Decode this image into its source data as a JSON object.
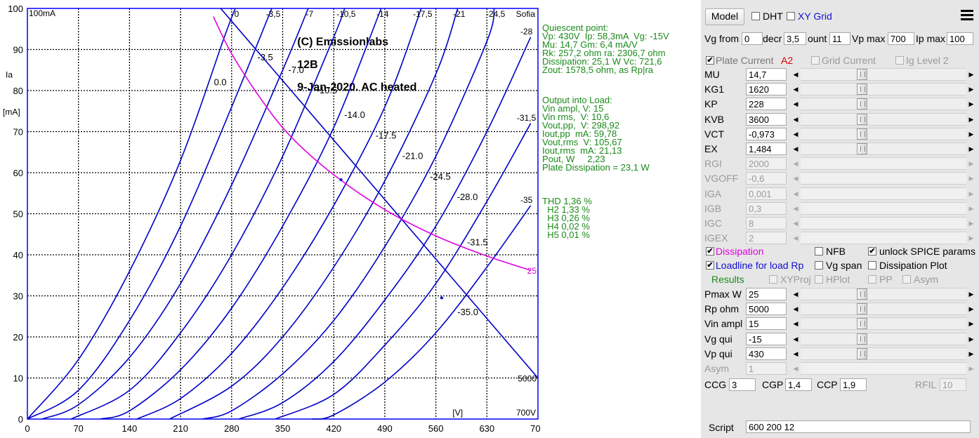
{
  "chart_data": {
    "type": "line",
    "title": "(C) Emissionlabs",
    "subtitle_lines": [
      "12B",
      "9-Jan-2020.  AC heated"
    ],
    "corner_label": "Sofia",
    "xlabel": "[V]",
    "ylabel_lines": [
      "Ia",
      "[mA]"
    ],
    "y_top_label": "100mA",
    "vpmax_label": "700V",
    "xlim": [
      0,
      700
    ],
    "ylim": [
      0,
      100
    ],
    "xticks": [
      0,
      70,
      140,
      210,
      280,
      350,
      420,
      490,
      560,
      630,
      700
    ],
    "yticks": [
      0,
      10,
      20,
      30,
      40,
      50,
      60,
      70,
      80,
      90,
      100
    ],
    "curves": [
      {
        "vg": 0,
        "top_label": "0",
        "mid_label": "0.0",
        "points": [
          [
            0,
            0
          ],
          [
            70,
            14.5
          ],
          [
            140,
            36
          ],
          [
            210,
            63
          ],
          [
            270,
            93
          ],
          [
            285,
            100
          ]
        ]
      },
      {
        "vg": -3.5,
        "top_label": "-3,5",
        "mid_label": "-3.5",
        "points": [
          [
            0,
            0
          ],
          [
            70,
            7
          ],
          [
            140,
            24
          ],
          [
            210,
            47
          ],
          [
            280,
            76
          ],
          [
            335,
            100
          ]
        ]
      },
      {
        "vg": -7,
        "top_label": "-7",
        "mid_label": "-7.0",
        "points": [
          [
            20,
            0
          ],
          [
            70,
            3.5
          ],
          [
            140,
            15
          ],
          [
            210,
            33
          ],
          [
            280,
            57
          ],
          [
            350,
            85
          ],
          [
            385,
            100
          ]
        ]
      },
      {
        "vg": -10.5,
        "top_label": "-10,5",
        "mid_label": "-10.5",
        "points": [
          [
            60,
            0
          ],
          [
            140,
            7
          ],
          [
            210,
            21
          ],
          [
            280,
            40
          ],
          [
            350,
            64
          ],
          [
            420,
            93
          ],
          [
            435,
            100
          ]
        ]
      },
      {
        "vg": -14,
        "top_label": "-14",
        "mid_label": "-14.0",
        "points": [
          [
            100,
            0
          ],
          [
            140,
            2
          ],
          [
            210,
            12
          ],
          [
            280,
            27
          ],
          [
            350,
            47
          ],
          [
            420,
            71
          ],
          [
            485,
            100
          ]
        ]
      },
      {
        "vg": -17.5,
        "top_label": "-17,5",
        "mid_label": "-17.5",
        "points": [
          [
            150,
            0
          ],
          [
            210,
            5
          ],
          [
            280,
            16
          ],
          [
            350,
            32
          ],
          [
            420,
            52
          ],
          [
            490,
            76
          ],
          [
            540,
            100
          ]
        ]
      },
      {
        "vg": -21,
        "top_label": "-21",
        "mid_label": "-21.0",
        "points": [
          [
            195,
            0
          ],
          [
            280,
            8
          ],
          [
            350,
            20
          ],
          [
            420,
            37
          ],
          [
            490,
            58
          ],
          [
            560,
            84
          ],
          [
            590,
            100
          ]
        ]
      },
      {
        "vg": -24.5,
        "top_label": "-24,5",
        "mid_label": "-24.5",
        "points": [
          [
            240,
            0
          ],
          [
            280,
            2
          ],
          [
            350,
            11
          ],
          [
            420,
            24
          ],
          [
            490,
            42
          ],
          [
            560,
            64
          ],
          [
            630,
            92
          ],
          [
            640,
            100
          ]
        ]
      },
      {
        "vg": -28,
        "top_label": "-28",
        "mid_label": "-28.0",
        "points": [
          [
            290,
            0
          ],
          [
            350,
            4
          ],
          [
            420,
            14
          ],
          [
            490,
            29
          ],
          [
            560,
            47
          ],
          [
            630,
            70
          ],
          [
            690,
            93
          ]
        ]
      },
      {
        "vg": -31.5,
        "top_label": "-31,5",
        "mid_label": "-31.5",
        "points": [
          [
            340,
            0
          ],
          [
            420,
            6
          ],
          [
            490,
            18
          ],
          [
            560,
            33
          ],
          [
            630,
            53
          ],
          [
            690,
            72
          ]
        ]
      },
      {
        "vg": -35,
        "top_label": "-35",
        "mid_label": "-35.0",
        "points": [
          [
            390,
            0
          ],
          [
            420,
            1
          ],
          [
            490,
            9
          ],
          [
            560,
            21
          ],
          [
            630,
            37
          ],
          [
            690,
            52
          ]
        ]
      }
    ],
    "loadline": {
      "name": "5000",
      "points": [
        [
          265,
          100
        ],
        [
          700,
          10
        ]
      ]
    },
    "dissipation": {
      "name": "25",
      "points": [
        [
          255,
          98
        ],
        [
          280,
          89
        ],
        [
          320,
          78
        ],
        [
          360,
          69
        ],
        [
          420,
          59.5
        ],
        [
          490,
          51
        ],
        [
          560,
          44.6
        ],
        [
          630,
          39.7
        ],
        [
          690,
          36.2
        ]
      ]
    },
    "quiescent_point": [
      430,
      58.3
    ],
    "swing_point": [
      568,
      29.5
    ],
    "grid": true,
    "colors": {
      "curves": "#0000c8",
      "loadline": "#0000c8",
      "dissipation": "#e000e0",
      "axes": "#0000ff",
      "grid": "#000000",
      "labels": "#000000"
    }
  },
  "info": {
    "quiescent": [
      "Quiescent point:",
      "Vp: 430V  Ip: 58,3mA  Vg: -15V",
      "Mu: 14,7 Gm: 6,4 mA/V",
      "Rk: 257,2 ohm ra: 2306,7 ohm",
      "Dissipation: 25,1 W Vc: 721,6",
      "Zout: 1578,5 ohm, as Rp|ra"
    ],
    "output": [
      "Output into Load:",
      "Vin ampl, V: 15",
      "Vin rms,  V: 10,6",
      "Vout,pp,  V: 298,92",
      "Iout,pp  mA: 59,78",
      "Vout,rms  V: 105,67",
      "Iout,rms  mA: 21,13",
      "Pout, W     2,23",
      "Plate Dissipation = 23,1 W"
    ],
    "thd": [
      "THD 1,36 %",
      "  H2 1,33 %",
      "  H3 0,26 %",
      "  H4 0,02 %",
      "  H5 0,01 %"
    ],
    "color": "#1a8a1a"
  },
  "panel": {
    "model_button": "Model",
    "dht_label": "DHT",
    "xy_grid_label": "XY Grid",
    "vg_from_label": "Vg from",
    "vg_from_value": "0",
    "decr_label": "decr",
    "decr_value": "3,5",
    "count_label": "ount",
    "count_value": "11",
    "vp_max_label": "Vp max",
    "vp_max_value": "700",
    "ip_max_label": "Ip max",
    "ip_max_value": "100",
    "plate_current_label": "Plate Current",
    "a2_label": "A2",
    "grid_current_label": "Grid Current",
    "ig_level_label": "Ig Level 2",
    "params": [
      {
        "name": "MU",
        "value": "14,7",
        "enabled": true,
        "pos": 0.36
      },
      {
        "name": "KG1",
        "value": "1620",
        "enabled": true,
        "pos": 0.36
      },
      {
        "name": "KP",
        "value": "228",
        "enabled": true,
        "pos": 0.36
      },
      {
        "name": "KVB",
        "value": "3600",
        "enabled": true,
        "pos": 0.36
      },
      {
        "name": "VCT",
        "value": "-0,973",
        "enabled": true,
        "pos": 0.36
      },
      {
        "name": "EX",
        "value": "1,484",
        "enabled": true,
        "pos": 0.36
      },
      {
        "name": "RGI",
        "value": "2000",
        "enabled": false
      },
      {
        "name": "VGOFF",
        "value": "-0,6",
        "enabled": false
      },
      {
        "name": "IGA",
        "value": "0,001",
        "enabled": false
      },
      {
        "name": "IGB",
        "value": "0,3",
        "enabled": false
      },
      {
        "name": "IGC",
        "value": "8",
        "enabled": false
      },
      {
        "name": "IGEX",
        "value": "2",
        "enabled": false
      }
    ],
    "dissipation_label": "Dissipation",
    "nfb_label": "NFB",
    "unlock_label": "unlock SPICE params",
    "loadline_label": "Loadline for load Rp",
    "vg_span_label": "Vg span",
    "dissipation_plot_label": "Dissipation Plot",
    "results_label": "Results",
    "xyproj_label": "XYProj",
    "hplot_label": "HPlot",
    "pp_label": "PP",
    "asym_label": "Asym",
    "op_params": [
      {
        "name": "Pmax W",
        "value": "25",
        "enabled": true,
        "pos": 0.36
      },
      {
        "name": "Rp ohm",
        "value": "5000",
        "enabled": true,
        "pos": 0.36
      },
      {
        "name": "Vin ampl",
        "value": "15",
        "enabled": true,
        "pos": 0.36
      },
      {
        "name": "Vg qui",
        "value": "-15",
        "enabled": true,
        "pos": 0.36
      },
      {
        "name": "Vp qui",
        "value": "430",
        "enabled": true,
        "pos": 0.36
      },
      {
        "name": "Asym",
        "value": "1",
        "enabled": false
      }
    ],
    "ccg_label": "CCG",
    "ccg_value": "3",
    "cgp_label": "CGP",
    "cgp_value": "1,4",
    "ccp_label": "CCP",
    "ccp_value": "1,9",
    "rfil_label": "RFIL",
    "rfil_value": "10",
    "script_label": "Script",
    "script_value": "600 200 12"
  }
}
